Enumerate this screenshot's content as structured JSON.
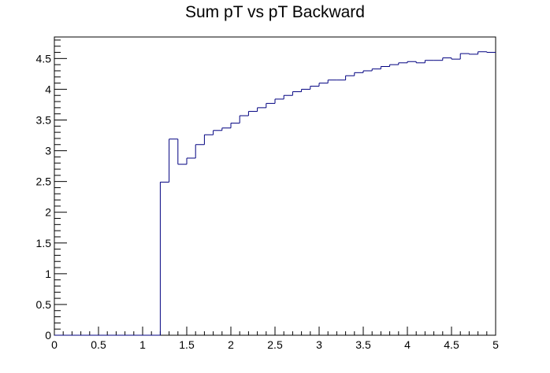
{
  "chart_data": {
    "type": "step",
    "title": "Sum pT vs pT Backward",
    "xlabel": "",
    "ylabel": "",
    "xlim": [
      0,
      5
    ],
    "ylim": [
      0,
      4.85
    ],
    "grid": false,
    "line_color": "#000080",
    "bin_width": 0.1,
    "bin_edges": [
      0,
      0.1,
      0.2,
      0.3,
      0.4,
      0.5,
      0.6,
      0.7,
      0.8,
      0.9,
      1.0,
      1.1,
      1.2,
      1.3,
      1.4,
      1.5,
      1.6,
      1.7,
      1.8,
      1.9,
      2.0,
      2.1,
      2.2,
      2.3,
      2.4,
      2.5,
      2.6,
      2.7,
      2.8,
      2.9,
      3.0,
      3.1,
      3.2,
      3.3,
      3.4,
      3.5,
      3.6,
      3.7,
      3.8,
      3.9,
      4.0,
      4.1,
      4.2,
      4.3,
      4.4,
      4.5,
      4.6,
      4.7,
      4.8,
      4.9,
      5.0
    ],
    "values": [
      0,
      0,
      0,
      0,
      0,
      0,
      0,
      0,
      0,
      0,
      0,
      0,
      2.49,
      3.19,
      2.78,
      2.88,
      3.1,
      3.26,
      3.33,
      3.37,
      3.45,
      3.57,
      3.64,
      3.7,
      3.77,
      3.84,
      3.9,
      3.96,
      4.0,
      4.05,
      4.1,
      4.15,
      4.15,
      4.22,
      4.27,
      4.3,
      4.33,
      4.37,
      4.4,
      4.43,
      4.45,
      4.43,
      4.47,
      4.47,
      4.51,
      4.49,
      4.58,
      4.57,
      4.61,
      4.6
    ],
    "x_ticks": [
      0,
      0.5,
      1,
      1.5,
      2,
      2.5,
      3,
      3.5,
      4,
      4.5,
      5
    ],
    "x_tick_labels": [
      "0",
      "0.5",
      "1",
      "1.5",
      "2",
      "2.5",
      "3",
      "3.5",
      "4",
      "4.5",
      "5"
    ],
    "y_ticks": [
      0,
      0.5,
      1,
      1.5,
      2,
      2.5,
      3,
      3.5,
      4,
      4.5
    ],
    "y_tick_labels": [
      "0",
      "0.5",
      "1",
      "1.5",
      "2",
      "2.5",
      "3",
      "3.5",
      "4",
      "4.5"
    ]
  }
}
